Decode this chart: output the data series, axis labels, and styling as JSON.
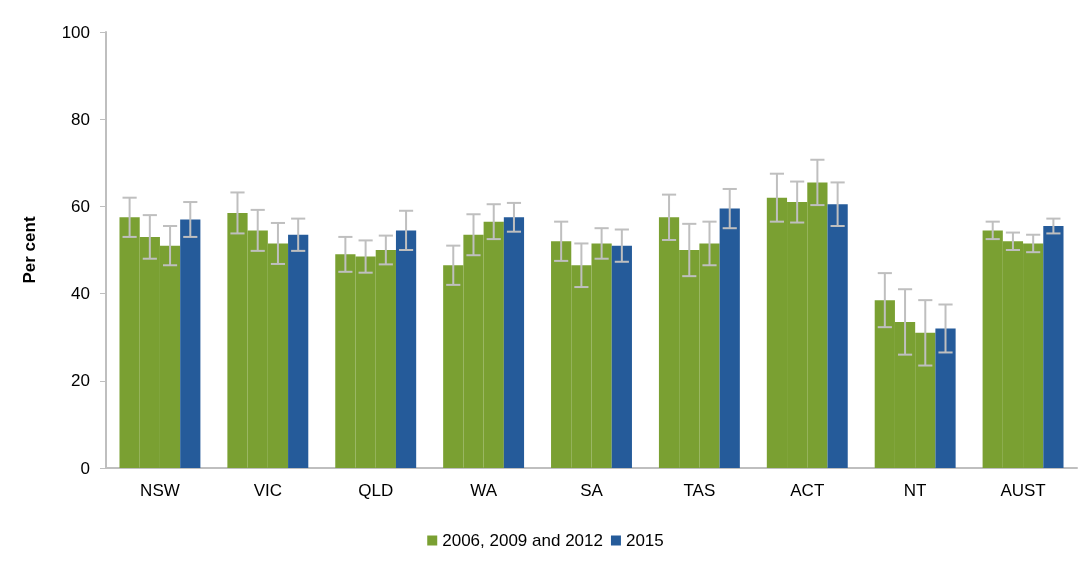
{
  "chart_data": {
    "type": "bar",
    "ylabel": "Per cent",
    "categories": [
      "NSW",
      "VIC",
      "QLD",
      "WA",
      "SA",
      "TAS",
      "ACT",
      "NT",
      "AUST"
    ],
    "series": [
      {
        "name": "2006, 2009 and 2012",
        "color": "#7aa032",
        "values": [
          57.5,
          58.5,
          49,
          46.5,
          52,
          57.5,
          62,
          38.5,
          54.5
        ],
        "errors": [
          4.5,
          4.7,
          4,
          4.5,
          4.5,
          5.2,
          5.5,
          6.2,
          2
        ]
      },
      {
        "color": "#7aa032",
        "values": [
          53,
          54.5,
          48.5,
          53.5,
          46.5,
          50,
          61,
          33.5,
          52
        ],
        "errors": [
          5,
          4.7,
          3.7,
          4.7,
          5,
          6,
          4.7,
          7.5,
          2
        ]
      },
      {
        "color": "#7aa032",
        "values": [
          51,
          51.5,
          50,
          56.5,
          51.5,
          51.5,
          65.5,
          31,
          51.5
        ],
        "errors": [
          4.5,
          4.7,
          3.3,
          4,
          3.5,
          5,
          5.2,
          7.5,
          2
        ]
      },
      {
        "name": "2015",
        "color": "#255b9a",
        "values": [
          57,
          53.5,
          54.5,
          57.5,
          51,
          59.5,
          60.5,
          32,
          55.5
        ],
        "errors": [
          4,
          3.7,
          4.5,
          3.3,
          3.7,
          4.5,
          5,
          5.5,
          1.7
        ]
      }
    ],
    "ylim": [
      0,
      100
    ],
    "yticks": [
      0,
      20,
      40,
      60,
      80,
      100
    ],
    "grid": false,
    "legend": "bottom"
  }
}
